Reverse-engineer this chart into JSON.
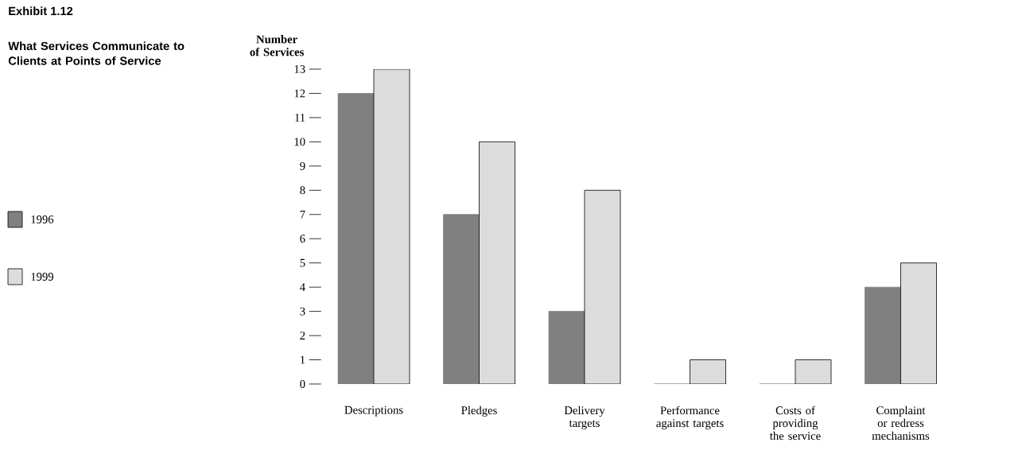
{
  "chart_data": {
    "type": "bar",
    "title": "Exhibit 1.12",
    "subtitle": "What Services Communicate to Clients at Points of Service",
    "ylabel": "Number of Services",
    "categories": [
      "Descriptions",
      "Pledges",
      "Delivery targets",
      "Performance against targets",
      "Costs of providing the service",
      "Complaint or redress mechanisms"
    ],
    "series": [
      {
        "name": "1996",
        "color": "#808080",
        "values": [
          12,
          7,
          3,
          0,
          0,
          4
        ]
      },
      {
        "name": "1999",
        "color": "#dcdcdc",
        "values": [
          13,
          10,
          8,
          1,
          1,
          5
        ]
      }
    ],
    "ylim": [
      0,
      13
    ],
    "yticks": [
      0,
      1,
      2,
      3,
      4,
      5,
      6,
      7,
      8,
      9,
      10,
      11,
      12,
      13
    ],
    "grid": false,
    "legend": "left"
  }
}
